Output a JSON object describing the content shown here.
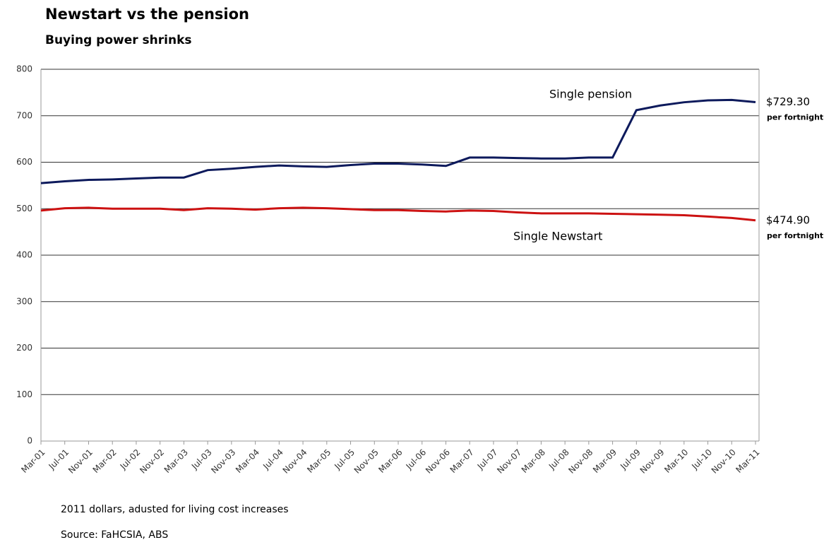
{
  "chart_data": {
    "type": "line",
    "title": "Newstart vs the pension",
    "subtitle": "Buying power shrinks",
    "categories": [
      "Mar-01",
      "Jul-01",
      "Nov-01",
      "Mar-02",
      "Jul-02",
      "Nov-02",
      "Mar-03",
      "Jul-03",
      "Nov-03",
      "Mar-04",
      "Jul-04",
      "Nov-04",
      "Mar-05",
      "Jul-05",
      "Nov-05",
      "Mar-06",
      "Jul-06",
      "Nov-06",
      "Mar-07",
      "Jul-07",
      "Nov-07",
      "Mar-08",
      "Jul-08",
      "Nov-08",
      "Mar-09",
      "Jul-09",
      "Nov-09",
      "Mar-10",
      "Jul-10",
      "Nov-10",
      "Mar-11"
    ],
    "series": [
      {
        "name": "Single pension",
        "color": "#0d1a5c",
        "values": [
          555,
          559,
          562,
          563,
          565,
          567,
          567,
          583,
          586,
          590,
          593,
          591,
          590,
          594,
          597,
          597,
          595,
          592,
          610,
          610,
          609,
          608,
          608,
          610,
          610,
          712,
          722,
          729,
          733,
          734,
          729.3
        ],
        "end_label": "$729.30",
        "end_note": "per fortnight"
      },
      {
        "name": "Single Newstart",
        "color": "#cc1111",
        "values": [
          496,
          501,
          502,
          500,
          500,
          500,
          497,
          501,
          500,
          498,
          501,
          502,
          501,
          499,
          497,
          497,
          495,
          494,
          496,
          495,
          492,
          490,
          490,
          490,
          489,
          488,
          487,
          486,
          483,
          480,
          474.9
        ],
        "end_label": "$474.90",
        "end_note": "per fortnight"
      }
    ],
    "ylim": [
      0,
      800
    ],
    "yticks": [
      0,
      100,
      200,
      300,
      400,
      500,
      600,
      700,
      800
    ],
    "grid": true,
    "notes": [
      "2011 dollars, adusted for living cost increases",
      "Source: FaHCSIA, ABS"
    ]
  }
}
